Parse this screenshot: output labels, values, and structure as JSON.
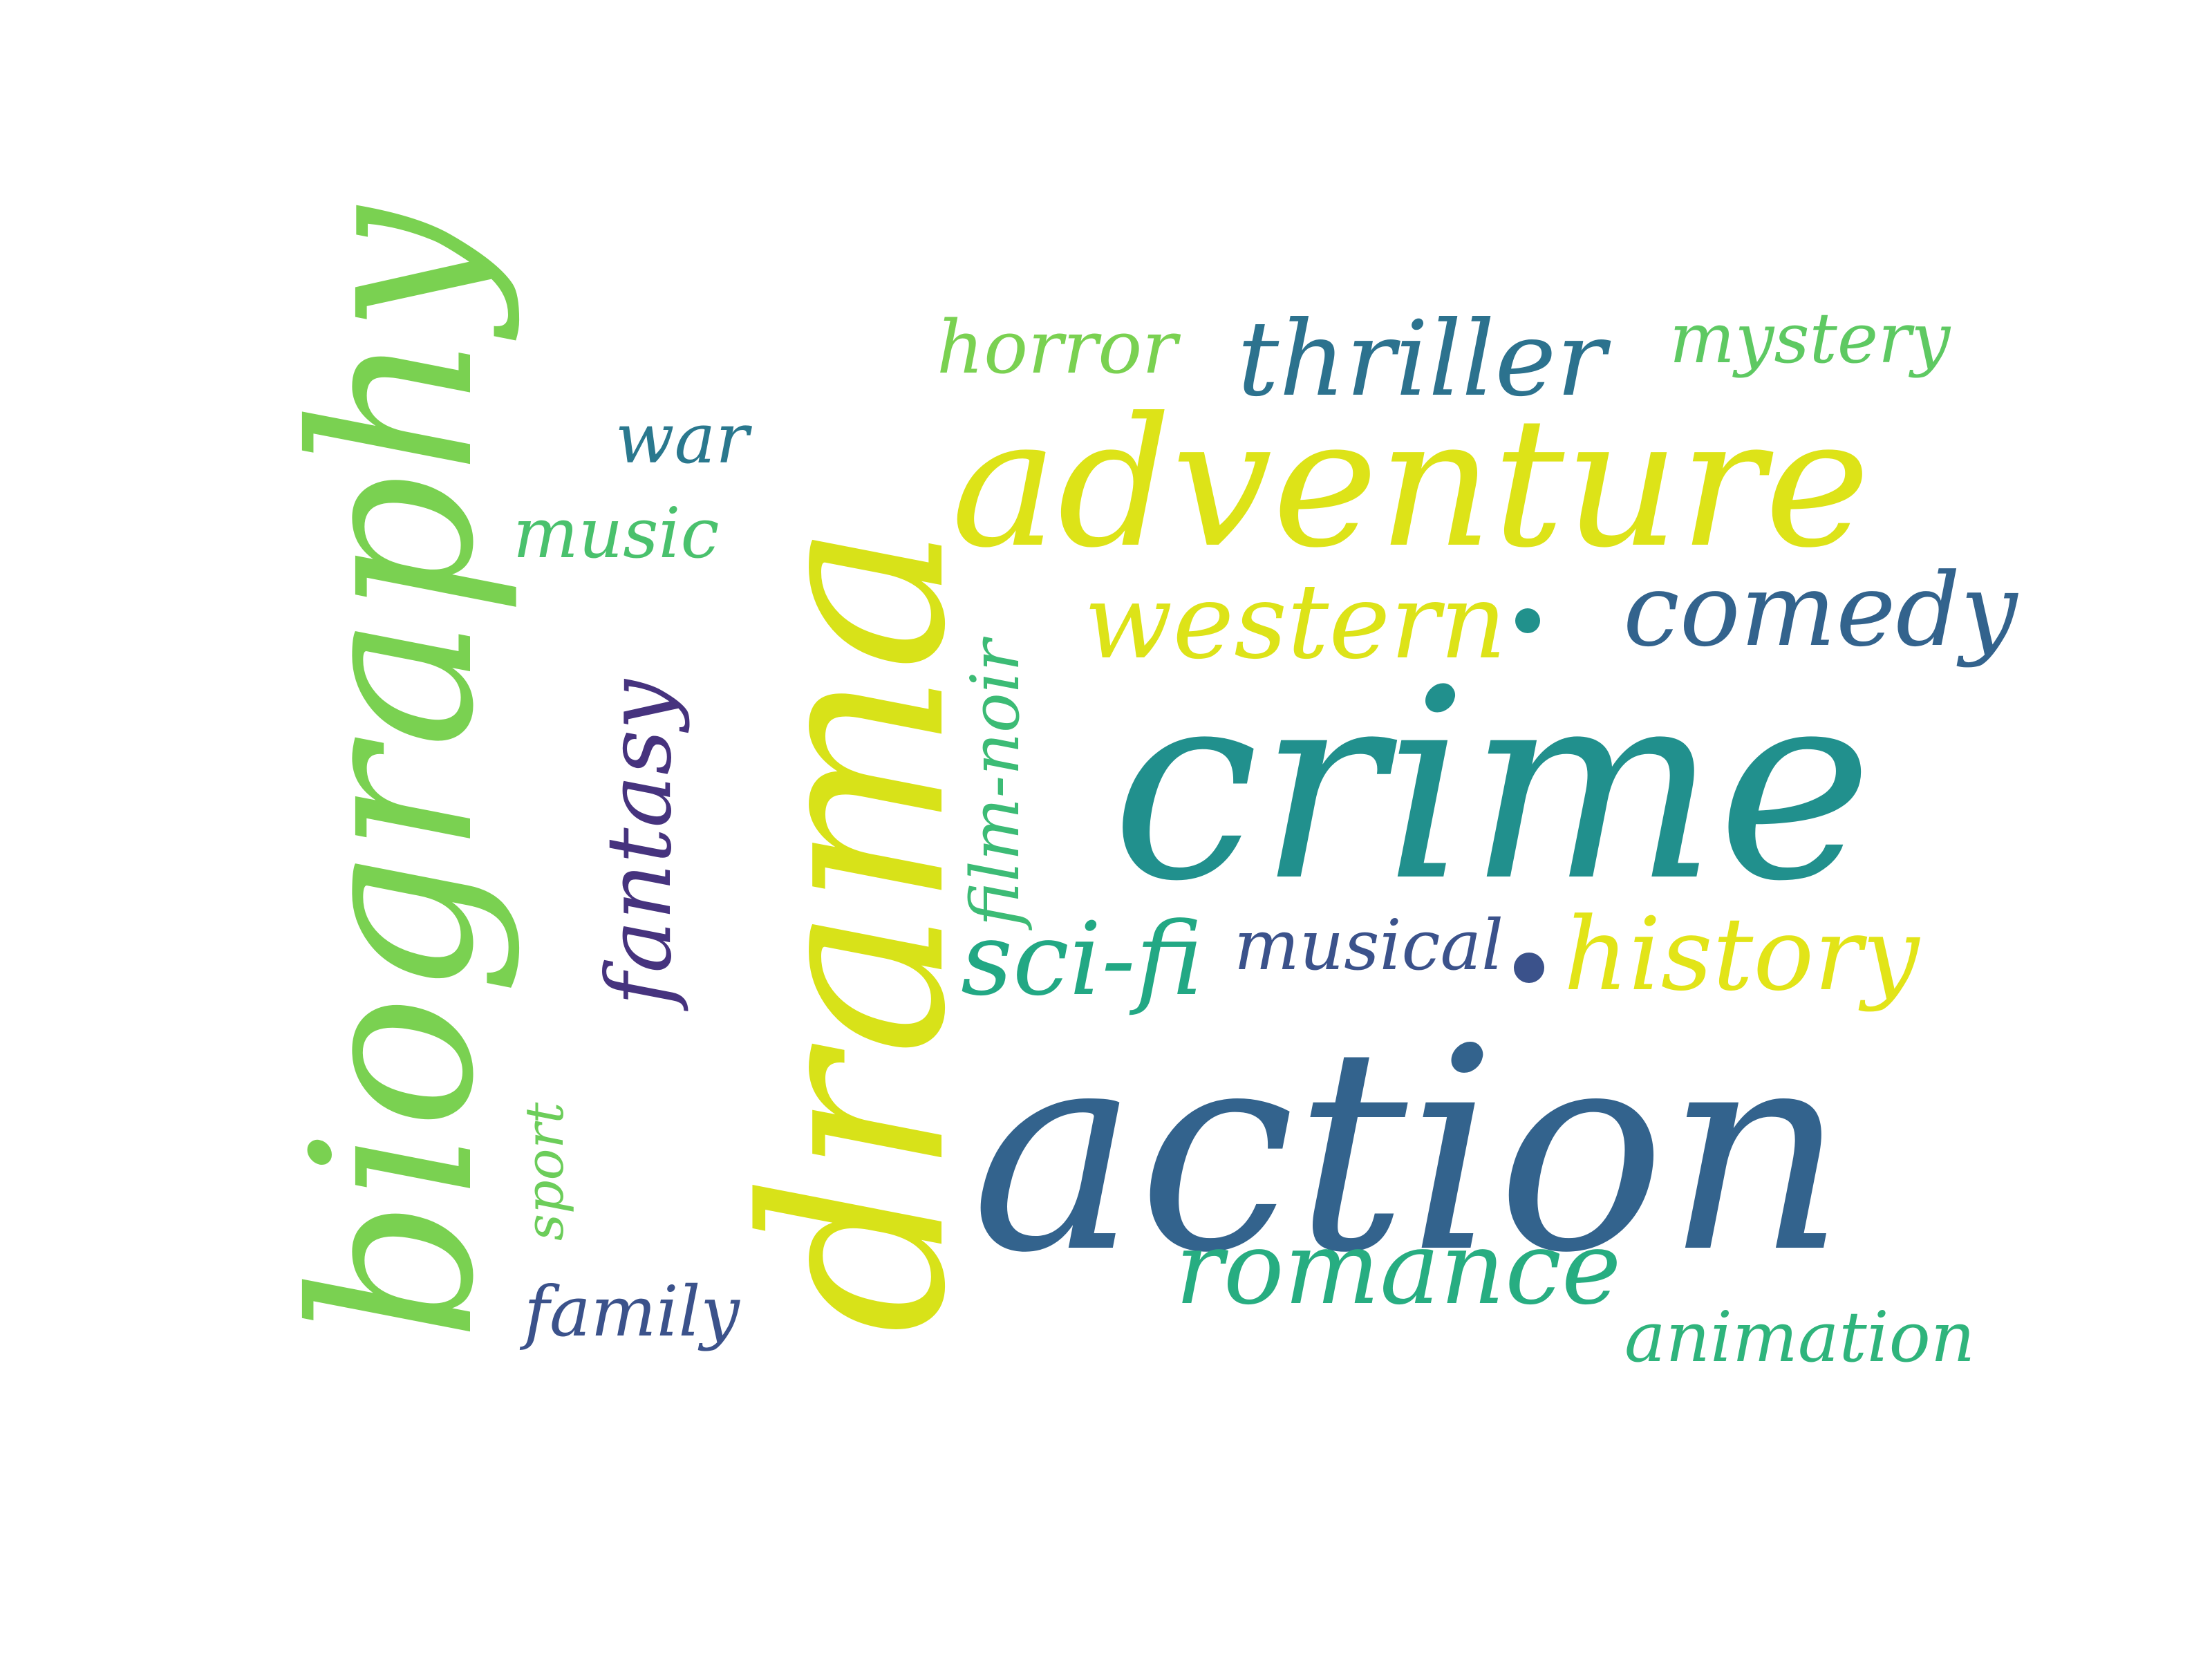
{
  "words": {
    "action": {
      "text": "action",
      "color": "#33638d"
    },
    "crime": {
      "text": "crime",
      "color": "#21908d"
    },
    "drama": {
      "text": "drama",
      "color": "#d8e219"
    },
    "biography": {
      "text": "biography",
      "color": "#7ad151"
    },
    "adventure": {
      "text": "adventure",
      "color": "#dde318"
    },
    "thriller": {
      "text": "thriller",
      "color": "#2c728e"
    },
    "horror": {
      "text": "horror",
      "color": "#7ad151"
    },
    "mystery": {
      "text": "mystery",
      "color": "#5ec962"
    },
    "war": {
      "text": "war",
      "color": "#2a788e"
    },
    "music": {
      "text": "music",
      "color": "#4ac16d"
    },
    "western": {
      "text": "western",
      "color": "#dde318"
    },
    "comedy": {
      "text": "comedy",
      "color": "#33638d"
    },
    "fantasy": {
      "text": "fantasy",
      "color": "#46337e"
    },
    "film_noir": {
      "text": "film-noir",
      "color": "#3cbb75"
    },
    "sci_fi": {
      "text": "sci-fi",
      "color": "#22a884"
    },
    "musical": {
      "text": "musical",
      "color": "#3b528b"
    },
    "history": {
      "text": "history",
      "color": "#e2e418"
    },
    "romance": {
      "text": "romance",
      "color": "#27ad81"
    },
    "animation": {
      "text": "animation",
      "color": "#2fb47c"
    },
    "sport": {
      "text": "sport",
      "color": "#6ccd5a"
    },
    "family": {
      "text": "family",
      "color": "#3b528b"
    }
  },
  "dots": {
    "dot_western": {
      "color": "#21918c"
    },
    "dot_musical": {
      "color": "#3b528b"
    }
  }
}
